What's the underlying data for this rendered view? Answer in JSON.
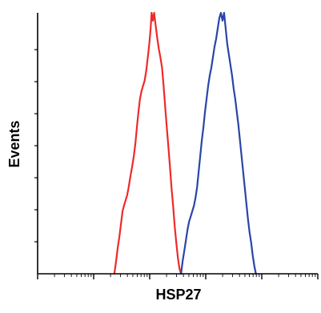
{
  "chart_data": {
    "type": "line",
    "title": "",
    "xlabel": "HSP27",
    "ylabel": "Events",
    "x_scale": "log",
    "xlim": [
      1,
      100000
    ],
    "ylim": [
      0,
      100
    ],
    "grid": false,
    "legend": "none",
    "series": [
      {
        "color": "#ee2a2a",
        "points": [
          [
            23.4,
            0
          ],
          [
            25.2,
            5
          ],
          [
            26.9,
            10
          ],
          [
            28.7,
            14
          ],
          [
            30.7,
            19
          ],
          [
            32.8,
            24
          ],
          [
            34.7,
            26
          ],
          [
            37.0,
            28
          ],
          [
            39.5,
            30
          ],
          [
            42.0,
            33
          ],
          [
            45.0,
            37
          ],
          [
            48.6,
            41
          ],
          [
            52.0,
            45
          ],
          [
            55.6,
            50
          ],
          [
            59.0,
            56
          ],
          [
            63.0,
            62
          ],
          [
            67.0,
            67
          ],
          [
            71.5,
            70
          ],
          [
            76.0,
            72
          ],
          [
            81.2,
            74
          ],
          [
            87.0,
            78
          ],
          [
            92.6,
            83
          ],
          [
            98.3,
            88
          ],
          [
            104,
            94
          ],
          [
            108,
            100
          ],
          [
            114,
            97
          ],
          [
            120,
            100
          ],
          [
            128,
            95
          ],
          [
            137,
            90
          ],
          [
            146,
            86
          ],
          [
            155,
            83
          ],
          [
            166,
            79
          ],
          [
            177,
            72
          ],
          [
            189,
            64
          ],
          [
            202,
            56
          ],
          [
            215,
            49
          ],
          [
            230,
            41
          ],
          [
            245,
            33
          ],
          [
            262,
            26
          ],
          [
            280,
            18
          ],
          [
            298,
            12
          ],
          [
            319,
            6
          ],
          [
            340,
            2
          ],
          [
            363,
            0
          ]
        ]
      },
      {
        "color": "#2a45a8",
        "points": [
          [
            363,
            0
          ],
          [
            388,
            5
          ],
          [
            416,
            9
          ],
          [
            444,
            13
          ],
          [
            474,
            17
          ],
          [
            505,
            20
          ],
          [
            540,
            22
          ],
          [
            576,
            24
          ],
          [
            615,
            26
          ],
          [
            656,
            29
          ],
          [
            700,
            33
          ],
          [
            747,
            39
          ],
          [
            797,
            45
          ],
          [
            850,
            51
          ],
          [
            908,
            56
          ],
          [
            970,
            62
          ],
          [
            1035,
            67
          ],
          [
            1105,
            72
          ],
          [
            1180,
            76
          ],
          [
            1260,
            79
          ],
          [
            1345,
            83
          ],
          [
            1436,
            87
          ],
          [
            1533,
            90
          ],
          [
            1637,
            94
          ],
          [
            1748,
            98
          ],
          [
            1866,
            100
          ],
          [
            1992,
            97
          ],
          [
            2127,
            100
          ],
          [
            2270,
            94
          ],
          [
            2423,
            88
          ],
          [
            2587,
            84
          ],
          [
            2762,
            80
          ],
          [
            2949,
            76
          ],
          [
            3148,
            71
          ],
          [
            3360,
            67
          ],
          [
            3587,
            62
          ],
          [
            3830,
            57
          ],
          [
            4088,
            51
          ],
          [
            4364,
            45
          ],
          [
            4660,
            39
          ],
          [
            4975,
            33
          ],
          [
            5310,
            27
          ],
          [
            5670,
            21
          ],
          [
            6050,
            16
          ],
          [
            6460,
            12
          ],
          [
            6900,
            7
          ],
          [
            7365,
            3
          ],
          [
            7860,
            0
          ]
        ]
      }
    ]
  }
}
